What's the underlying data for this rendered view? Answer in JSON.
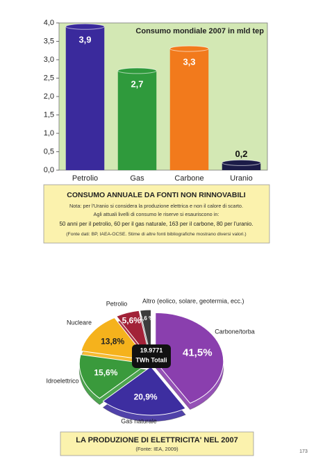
{
  "chart_data": [
    {
      "type": "bar",
      "title": "Consumo mondiale 2007 in mld tep",
      "categories": [
        "Petrolio",
        "Gas",
        "Carbone",
        "Uranio"
      ],
      "values": [
        3.9,
        2.7,
        3.3,
        0.2
      ],
      "value_labels": [
        "3,9",
        "2,7",
        "3,3",
        "0,2"
      ],
      "colors": [
        "#3a2a9c",
        "#2f9a3c",
        "#f27a1c",
        "#1c1c48"
      ],
      "ylim": [
        0,
        4
      ],
      "yticks": [
        {
          "value": 0,
          "label": "0,0"
        },
        {
          "value": 0.5,
          "label": "0,5"
        },
        {
          "value": 1,
          "label": "1,0"
        },
        {
          "value": 1.5,
          "label": "1,5"
        },
        {
          "value": 2,
          "label": "2,0"
        },
        {
          "value": 2.5,
          "label": "2,5"
        },
        {
          "value": 3,
          "label": "3,0"
        },
        {
          "value": 3.5,
          "label": "3,5"
        },
        {
          "value": 4,
          "label": "4,0"
        }
      ],
      "caption_title": "CONSUMO ANNUALE DA FONTI NON RINNOVABILI",
      "caption_notes": [
        "Nota: per l'Uranio si considera la produzione elettrica e non il calore di scarto.",
        "Agli attuali livelli di consumo le riserve si esauriscono in:",
        "50 anni per il petrolio, 60 per il gas naturale, 163 per il carbone, 80 per l'uranio.",
        "(Fonte dati: BP, IAEA-OCSE. Stime di altre fonti bibliografiche mostrano diversi valori.)"
      ]
    },
    {
      "type": "pie",
      "categories": [
        "Carbone/torba",
        "Gas naturale",
        "Idroelettrico",
        "Nucleare",
        "Petrolio",
        "Altro (eolico, solare, geotermia, ecc.)"
      ],
      "values": [
        41.5,
        20.9,
        15.6,
        13.8,
        5.6,
        2.6
      ],
      "value_labels": [
        "41,5%",
        "20,9%",
        "15,6%",
        "13,8%",
        "5,6%",
        "2,6 %"
      ],
      "colors": [
        "#8a3fae",
        "#3d2ea0",
        "#3a9a3c",
        "#f5b21c",
        "#a22238",
        "#3c3c3c"
      ],
      "center_label": [
        "19.9771",
        "TWh Totali"
      ],
      "caption_title": "LA PRODUZIONE DI ELETTRICITA' NEL 2007",
      "caption_notes": [
        "(Fonte: IEA, 2009)"
      ]
    }
  ],
  "page_number": "173"
}
